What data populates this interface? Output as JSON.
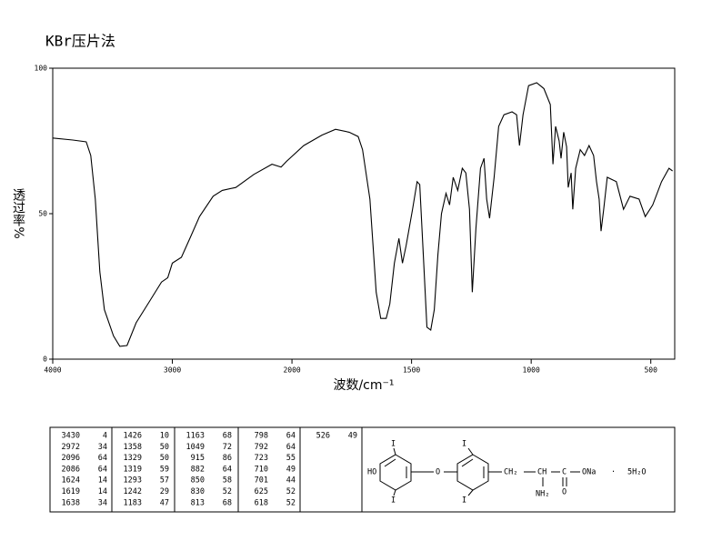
{
  "chart_data": {
    "type": "line",
    "title": "KBr压片法",
    "x_label": "波数/cm⁻¹",
    "y_label": "透过率%",
    "xlim": [
      4000,
      400
    ],
    "xticks": [
      4000,
      3000,
      2000,
      1500,
      1000,
      500
    ],
    "ylim": [
      0,
      100
    ],
    "yticks": [
      0,
      50,
      100
    ],
    "x": [
      4000,
      3833,
      3720,
      3682,
      3644,
      3606,
      3568,
      3492,
      3439,
      3379,
      3303,
      3189,
      3091,
      3038,
      3000,
      2924,
      2848,
      2773,
      2659,
      2583,
      2470,
      2318,
      2167,
      2091,
      2045,
      1951,
      1875,
      1818,
      1761,
      1723,
      1705,
      1674,
      1648,
      1629,
      1606,
      1591,
      1572,
      1553,
      1538,
      1523,
      1496,
      1477,
      1466,
      1451,
      1436,
      1420,
      1405,
      1390,
      1375,
      1356,
      1341,
      1326,
      1307,
      1288,
      1273,
      1258,
      1246,
      1231,
      1212,
      1197,
      1186,
      1174,
      1155,
      1136,
      1114,
      1080,
      1061,
      1049,
      1034,
      1011,
      977,
      947,
      920,
      909,
      898,
      883,
      875,
      864,
      852,
      845,
      833,
      826,
      814,
      795,
      777,
      758,
      739,
      727,
      716,
      708,
      697,
      682,
      644,
      614,
      587,
      549,
      523,
      492,
      455,
      424,
      409
    ],
    "series": [
      {
        "color": "#000000",
        "values": [
          76,
          75.3,
          74.7,
          70,
          55,
          30,
          17,
          8,
          4.4,
          4.7,
          12.5,
          20,
          26.5,
          28,
          33,
          35,
          42,
          49,
          56,
          58,
          59,
          63.5,
          67,
          66,
          68,
          73.4,
          77,
          79,
          78,
          76.5,
          72,
          55,
          23,
          14,
          14,
          19,
          33,
          41.5,
          33,
          39,
          51.5,
          61,
          60,
          36,
          11,
          10,
          17,
          36,
          50,
          57,
          53,
          62.5,
          58,
          65.6,
          64,
          51.5,
          23,
          45,
          65.6,
          69,
          55,
          48.4,
          62.5,
          80,
          84,
          85,
          84,
          73.4,
          84,
          94,
          95,
          93,
          87.5,
          67,
          80,
          75,
          69,
          78,
          73,
          59,
          64,
          51.5,
          65.6,
          72,
          70,
          73.4,
          70,
          61,
          55,
          44,
          51.5,
          62.5,
          61,
          51.5,
          56,
          55,
          49,
          53,
          61,
          65.6,
          64.7
        ]
      }
    ]
  },
  "peak_table": {
    "columns": [
      [
        [
          "3430",
          "4"
        ],
        [
          "2972",
          "34"
        ],
        [
          "2096",
          "64"
        ],
        [
          "2086",
          "64"
        ],
        [
          "1624",
          "14"
        ],
        [
          "1619",
          "14"
        ],
        [
          "1638",
          "34"
        ]
      ],
      [
        [
          "1426",
          "10"
        ],
        [
          "1358",
          "50"
        ],
        [
          "1329",
          "50"
        ],
        [
          "1319",
          "59"
        ],
        [
          "1293",
          "57"
        ],
        [
          "1242",
          "29"
        ],
        [
          "1183",
          "47"
        ]
      ],
      [
        [
          "1163",
          "68"
        ],
        [
          "1049",
          "72"
        ],
        [
          "915",
          "86"
        ],
        [
          "882",
          "64"
        ],
        [
          "850",
          "58"
        ],
        [
          "830",
          "52"
        ],
        [
          "813",
          "68"
        ]
      ],
      [
        [
          "798",
          "64"
        ],
        [
          "792",
          "64"
        ],
        [
          "723",
          "55"
        ],
        [
          "710",
          "49"
        ],
        [
          "701",
          "44"
        ],
        [
          "625",
          "52"
        ],
        [
          "618",
          "52"
        ]
      ],
      [
        [
          "526",
          "49"
        ]
      ]
    ]
  },
  "structure": {
    "iodine_1": "I",
    "iodine_2": "I",
    "iodine_3": "I",
    "iodine_4": "I",
    "hydroxyl": "HO",
    "ether": "O",
    "methylene": "CH₂",
    "methine": "CH",
    "carbonyl_c": "C",
    "salt": "ONa",
    "amine": "NH₂",
    "carbonyl_o": "O",
    "dot": "·",
    "hydrate": "5H₂O"
  }
}
